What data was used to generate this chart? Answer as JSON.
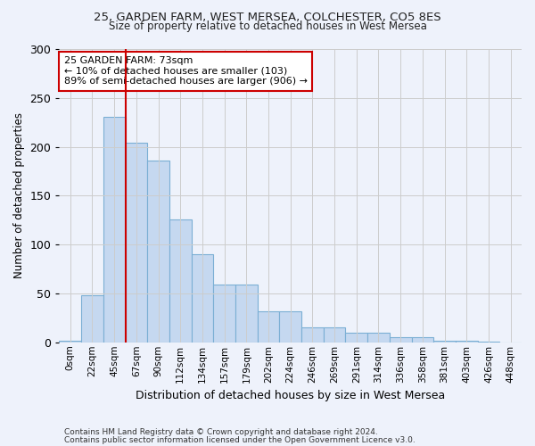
{
  "title1": "25, GARDEN FARM, WEST MERSEA, COLCHESTER, CO5 8ES",
  "title2": "Size of property relative to detached houses in West Mersea",
  "xlabel": "Distribution of detached houses by size in West Mersea",
  "ylabel": "Number of detached properties",
  "footer1": "Contains HM Land Registry data © Crown copyright and database right 2024.",
  "footer2": "Contains public sector information licensed under the Open Government Licence v3.0.",
  "annotation_title": "25 GARDEN FARM: 73sqm",
  "annotation_line1": "← 10% of detached houses are smaller (103)",
  "annotation_line2": "89% of semi-detached houses are larger (906) →",
  "bar_labels": [
    "0sqm",
    "22sqm",
    "45sqm",
    "67sqm",
    "90sqm",
    "112sqm",
    "134sqm",
    "157sqm",
    "179sqm",
    "202sqm",
    "224sqm",
    "246sqm",
    "269sqm",
    "291sqm",
    "314sqm",
    "336sqm",
    "358sqm",
    "381sqm",
    "403sqm",
    "426sqm",
    "448sqm"
  ],
  "bar_values": [
    2,
    48,
    231,
    204,
    186,
    126,
    90,
    59,
    59,
    32,
    32,
    15,
    15,
    10,
    10,
    5,
    5,
    2,
    2,
    1,
    0
  ],
  "bar_color": "#c5d8f0",
  "bar_edge_color": "#7bafd4",
  "red_line_x": 3.0,
  "ylim": [
    0,
    300
  ],
  "yticks": [
    0,
    50,
    100,
    150,
    200,
    250,
    300
  ],
  "grid_color": "#cccccc",
  "annotation_box_color": "#ffffff",
  "annotation_box_edge": "#cc0000",
  "background_color": "#eef2fb"
}
